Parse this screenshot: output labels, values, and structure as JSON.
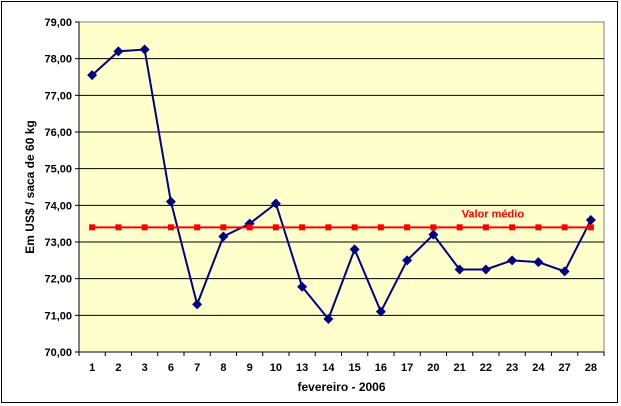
{
  "chart_data": {
    "type": "line",
    "x_label": "fevereiro - 2006",
    "y_label": "Em US$ / saca de 60 kg",
    "categories": [
      "1",
      "2",
      "3",
      "6",
      "7",
      "8",
      "9",
      "10",
      "13",
      "14",
      "15",
      "16",
      "17",
      "20",
      "21",
      "22",
      "23",
      "24",
      "27",
      "28"
    ],
    "y_ticks": [
      "70,00",
      "71,00",
      "72,00",
      "73,00",
      "74,00",
      "75,00",
      "76,00",
      "77,00",
      "78,00",
      "79,00"
    ],
    "ylim": [
      70,
      79
    ],
    "grid": true,
    "series": [
      {
        "values": [
          77.55,
          78.2,
          78.25,
          74.1,
          71.3,
          73.15,
          73.5,
          74.05,
          71.78,
          70.9,
          72.8,
          71.1,
          72.5,
          73.2,
          72.25,
          72.25,
          72.5,
          72.45,
          72.2,
          73.6
        ],
        "color": "#000080",
        "marker": "diamond"
      },
      {
        "values": [
          73.4,
          73.4,
          73.4,
          73.4,
          73.4,
          73.4,
          73.4,
          73.4,
          73.4,
          73.4,
          73.4,
          73.4,
          73.4,
          73.4,
          73.4,
          73.4,
          73.4,
          73.4,
          73.4,
          73.4
        ],
        "color": "#ff0000",
        "marker": "square"
      }
    ],
    "annotation": "Valor médio",
    "plot_background": "#ffffcc"
  }
}
